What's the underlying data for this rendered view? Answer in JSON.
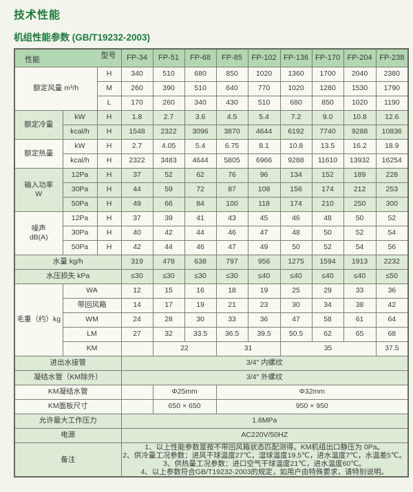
{
  "page": {
    "title": "技术性能",
    "subtitle": "机组性能参数 (GB/T19232-2003)"
  },
  "colors": {
    "title_green": "#1e7a3e",
    "header_green": "#b2d7b2",
    "row_green_tint": "#dcead6",
    "row_white": "#f8faf2",
    "border": "#7a7e72",
    "page_background": "#f3f5ec"
  },
  "table": {
    "corner": {
      "left": "性能",
      "right": "型号"
    },
    "models": [
      "FP-34",
      "FP-51",
      "FP-68",
      "FP-85",
      "FP-102",
      "FP-136",
      "FP-170",
      "FP-204",
      "FP-238"
    ],
    "rows": [
      {
        "bg": "w",
        "cells": [
          {
            "t": "额定风量 m³/h",
            "cs": 2,
            "rs": 3,
            "name": "row-label-rated-airflow"
          },
          {
            "t": "H",
            "name": "speed-label"
          },
          "340",
          "510",
          "680",
          "850",
          "1020",
          "1360",
          "1700",
          "2040",
          "2380"
        ]
      },
      {
        "bg": "w",
        "cells": [
          {
            "t": "M",
            "name": "speed-label"
          },
          "260",
          "390",
          "510",
          "640",
          "770",
          "1020",
          "1280",
          "1530",
          "1790"
        ]
      },
      {
        "bg": "w",
        "cells": [
          {
            "t": "L",
            "name": "speed-label"
          },
          "170",
          "260",
          "340",
          "430",
          "510",
          "680",
          "850",
          "1020",
          "1190"
        ]
      },
      {
        "bg": "g",
        "cells": [
          {
            "t": "额定冷量",
            "rs": 2,
            "name": "row-label-rated-cooling"
          },
          {
            "t": "kW",
            "name": "unit-label"
          },
          {
            "t": "H",
            "name": "speed-label"
          },
          "1.8",
          "2.7",
          "3.6",
          "4.5",
          "5.4",
          "7.2",
          "9.0",
          "10.8",
          "12.6"
        ]
      },
      {
        "bg": "g",
        "cells": [
          {
            "t": "kcal/h",
            "name": "unit-label"
          },
          {
            "t": "H",
            "name": "speed-label"
          },
          "1548",
          "2322",
          "3096",
          "3870",
          "4644",
          "6192",
          "7740",
          "9288",
          "10836"
        ]
      },
      {
        "bg": "w",
        "cells": [
          {
            "t": "额定热量",
            "rs": 2,
            "name": "row-label-rated-heating"
          },
          {
            "t": "kW",
            "name": "unit-label"
          },
          {
            "t": "H",
            "name": "speed-label"
          },
          "2.7",
          "4.05",
          "5.4",
          "6.75",
          "8.1",
          "10.8",
          "13.5",
          "16.2",
          "18.9"
        ]
      },
      {
        "bg": "w",
        "cells": [
          {
            "t": "kcal/h",
            "name": "unit-label"
          },
          {
            "t": "H",
            "name": "speed-label"
          },
          "2322",
          "3483",
          "4644",
          "5805",
          "6966",
          "9288",
          "11610",
          "13932",
          "16254"
        ]
      },
      {
        "bg": "g",
        "cells": [
          {
            "lines": [
              "输入功率",
              "W"
            ],
            "rs": 3,
            "name": "row-label-input-power"
          },
          {
            "t": "12Pa",
            "name": "pressure-label"
          },
          {
            "t": "H",
            "name": "speed-label"
          },
          "37",
          "52",
          "62",
          "76",
          "96",
          "134",
          "152",
          "189",
          "228"
        ]
      },
      {
        "bg": "g",
        "cells": [
          {
            "t": "30Pa",
            "name": "pressure-label"
          },
          {
            "t": "H",
            "name": "speed-label"
          },
          "44",
          "59",
          "72",
          "87",
          "108",
          "156",
          "174",
          "212",
          "253"
        ]
      },
      {
        "bg": "g",
        "cells": [
          {
            "t": "50Pa",
            "name": "pressure-label"
          },
          {
            "t": "H",
            "name": "speed-label"
          },
          "49",
          "66",
          "84",
          "100",
          "118",
          "174",
          "210",
          "250",
          "300"
        ]
      },
      {
        "bg": "w",
        "cells": [
          {
            "lines": [
              "噪声",
              "dB(A)"
            ],
            "rs": 3,
            "name": "row-label-noise"
          },
          {
            "t": "12Pa",
            "name": "pressure-label"
          },
          {
            "t": "H",
            "name": "speed-label"
          },
          "37",
          "39",
          "41",
          "43",
          "45",
          "46",
          "48",
          "50",
          "52"
        ]
      },
      {
        "bg": "w",
        "cells": [
          {
            "t": "30Pa",
            "name": "pressure-label"
          },
          {
            "t": "H",
            "name": "speed-label"
          },
          "40",
          "42",
          "44",
          "46",
          "47",
          "48",
          "50",
          "52",
          "54"
        ]
      },
      {
        "bg": "w",
        "cells": [
          {
            "t": "50Pa",
            "name": "pressure-label"
          },
          {
            "t": "H",
            "name": "speed-label"
          },
          "42",
          "44",
          "46",
          "47",
          "49",
          "50",
          "52",
          "54",
          "56"
        ]
      },
      {
        "bg": "g",
        "cells": [
          {
            "t": "水量 kg/h",
            "cs": 3,
            "name": "row-label-water-flow"
          },
          "319",
          "478",
          "638",
          "797",
          "956",
          "1275",
          "1594",
          "1913",
          "2232"
        ]
      },
      {
        "bg": "g",
        "cells": [
          {
            "t": "水压损失 kPa",
            "cs": 3,
            "name": "row-label-pressure-loss"
          },
          "≤30",
          "≤30",
          "≤30",
          "≤30",
          "≤40",
          "≤40",
          "≤40",
          "≤40",
          "≤50"
        ]
      },
      {
        "bg": "w",
        "cells": [
          {
            "t": "毛重（约）kg",
            "rs": 5,
            "name": "row-label-gross-weight"
          },
          {
            "t": "WA",
            "cs": 2,
            "name": "variant-label"
          },
          "12",
          "15",
          "16",
          "18",
          "19",
          "25",
          "29",
          "33",
          "36"
        ]
      },
      {
        "bg": "w",
        "cells": [
          {
            "t": "带回风箱",
            "cs": 2,
            "name": "variant-label"
          },
          "14",
          "17",
          "19",
          "21",
          "23",
          "30",
          "34",
          "38",
          "42"
        ]
      },
      {
        "bg": "w",
        "cells": [
          {
            "t": "WM",
            "cs": 2,
            "name": "variant-label"
          },
          "24",
          "28",
          "30",
          "33",
          "36",
          "47",
          "58",
          "61",
          "64"
        ]
      },
      {
        "bg": "w",
        "cells": [
          {
            "t": "LM",
            "cs": 2,
            "name": "variant-label"
          },
          "27",
          "32",
          "33.5",
          "36.5",
          "39.5",
          "50.5",
          "62",
          "65",
          "68"
        ]
      },
      {
        "bg": "w",
        "cells": [
          {
            "t": "KM",
            "cs": 2,
            "name": "variant-label"
          },
          {
            "cls": "slash",
            "name": "slash-cell"
          },
          {
            "t": "22",
            "cs": 2
          },
          {
            "t": "31",
            "cs": 2
          },
          {
            "t": "35",
            "cs": 3
          },
          {
            "t": "37.5"
          }
        ]
      },
      {
        "bg": "g",
        "cells": [
          {
            "t": "进出水接管",
            "cs": 3,
            "name": "row-label-water-pipe"
          },
          {
            "t": "3/4\" 内螺纹",
            "cs": 9
          }
        ]
      },
      {
        "bg": "g",
        "cells": [
          {
            "t": "凝结水管（KM除外）",
            "cs": 3,
            "name": "row-label-condensate-pipe"
          },
          {
            "t": "3/4\" 外螺纹",
            "cs": 9
          }
        ]
      },
      {
        "bg": "w",
        "cells": [
          {
            "t": "KM凝结水管",
            "cs": 3,
            "name": "row-label-km-condensate"
          },
          {
            "cls": "slash",
            "name": "slash-cell"
          },
          {
            "t": "Φ25mm",
            "cs": 2
          },
          {
            "t": "Φ32mm",
            "cs": 6
          }
        ]
      },
      {
        "bg": "w",
        "cells": [
          {
            "t": "KM面板尺寸",
            "cs": 3,
            "name": "row-label-km-panel-size"
          },
          {
            "cls": "slash",
            "name": "slash-cell"
          },
          {
            "t": "650 × 650",
            "cs": 2
          },
          {
            "t": "950 × 950",
            "cs": 6
          }
        ]
      },
      {
        "bg": "g",
        "cells": [
          {
            "t": "允许最大工作压力",
            "cs": 3,
            "name": "row-label-max-pressure"
          },
          {
            "t": "1.6MPa",
            "cs": 9
          }
        ]
      },
      {
        "bg": "g",
        "cells": [
          {
            "t": "电源",
            "cs": 3,
            "name": "row-label-power-supply"
          },
          {
            "t": "AC220V/50HZ",
            "cs": 9
          }
        ]
      },
      {
        "bg": "g",
        "cells": [
          {
            "t": "备注",
            "cs": 3,
            "name": "row-label-remarks"
          },
          {
            "cls": "notes",
            "cs": 9,
            "name": "remarks-text",
            "lines": [
              "1、以上性能参数是按不带回风箱状态匹配测得。KM机组出口静压为 0Pa。",
              "2、供冷量工况参数：进风干球温度27℃，湿球温度19.5℃，进水温度7℃，水温差5℃。",
              "3、供热量工况参数：进口空气干球温度21℃，进水温度60℃。",
              "4、以上参数符合GB/T19232-2003的规定，如用户由特殊要求，请特别说明。"
            ]
          }
        ]
      }
    ]
  }
}
